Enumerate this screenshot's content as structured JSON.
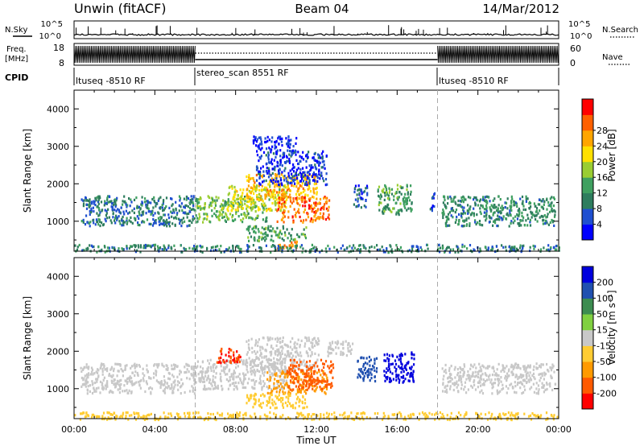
{
  "header": {
    "station": "Unwin (fitACF)",
    "beam": "Beam 04",
    "date": "14/Mar/2012"
  },
  "strips": {
    "nsky_label": "N.Sky",
    "nsearch_label": "N.Search",
    "noise_ticks_left": [
      "10^5",
      "10^0"
    ],
    "noise_ticks_right": [
      "10^5",
      "10^0"
    ],
    "freq_label_1": "Freq.",
    "freq_label_2": "[MHz]",
    "freq_ticks": [
      "18",
      "8"
    ],
    "nave_label": "Nave",
    "nave_ticks": [
      "60",
      "0"
    ],
    "cpid_label": "CPID",
    "cpid_segments": [
      {
        "label": "ltuseq -8510 RF",
        "start_h": 0,
        "end_h": 6
      },
      {
        "label": "stereo_scan 8551 RF",
        "start_h": 6,
        "end_h": 18
      },
      {
        "label": "ltuseq -8510 RF",
        "start_h": 18,
        "end_h": 24
      }
    ]
  },
  "colors": {
    "power_scale": [
      "#0000ff",
      "#1f4fd0",
      "#2e7d5e",
      "#3fa060",
      "#9acd32",
      "#ffe000",
      "#ffa500",
      "#ff6000",
      "#ff0000"
    ],
    "velocity_scale": [
      "#ff0000",
      "#ff5a00",
      "#ff9a00",
      "#ffcc33",
      "#c8c8c8",
      "#80d040",
      "#3c8c50",
      "#2050b0",
      "#0000dd"
    ]
  },
  "chart_data": [
    {
      "type": "heatmap",
      "panel": "power",
      "ylabel": "Slant Range [km]",
      "yticks": [
        "1000",
        "2000",
        "3000",
        "4000"
      ],
      "ylim": [
        200,
        4500
      ],
      "xlim": [
        0,
        24
      ],
      "colorbar_label": "Power [dB]",
      "colorbar_ticks": [
        "4",
        "8",
        "12",
        "16",
        "20",
        "24",
        "28"
      ],
      "colorbar_range": [
        0,
        32
      ],
      "regions": [
        {
          "t0": 0.3,
          "t1": 6.0,
          "r0": 900,
          "r1": 1700,
          "v": 8
        },
        {
          "t0": 6.0,
          "t1": 9.5,
          "r0": 1000,
          "r1": 1700,
          "v": 14
        },
        {
          "t0": 7.5,
          "t1": 10.5,
          "r0": 1300,
          "r1": 2000,
          "v": 18
        },
        {
          "t0": 8.5,
          "t1": 12.0,
          "r0": 1600,
          "r1": 2300,
          "v": 22
        },
        {
          "t0": 10.0,
          "t1": 12.6,
          "r0": 1000,
          "r1": 1700,
          "v": 26
        },
        {
          "t0": 8.5,
          "t1": 11.5,
          "r0": 500,
          "r1": 900,
          "v": 12
        },
        {
          "t0": 10.0,
          "t1": 11.0,
          "r0": 250,
          "r1": 500,
          "v": 24
        },
        {
          "t0": 9.0,
          "t1": 12.5,
          "r0": 2000,
          "r1": 2900,
          "v": 4
        },
        {
          "t0": 8.8,
          "t1": 11.0,
          "r0": 2900,
          "r1": 3300,
          "v": 3
        },
        {
          "t0": 13.8,
          "t1": 14.5,
          "r0": 1400,
          "r1": 2000,
          "v": 6
        },
        {
          "t0": 15.0,
          "t1": 16.7,
          "r0": 1200,
          "r1": 2000,
          "v": 12
        },
        {
          "t0": 17.6,
          "t1": 17.9,
          "r0": 1300,
          "r1": 1800,
          "v": 6
        },
        {
          "t0": 18.2,
          "t1": 23.8,
          "r0": 900,
          "r1": 1700,
          "v": 10
        },
        {
          "t0": 0.0,
          "t1": 24.0,
          "r0": 200,
          "r1": 400,
          "v": 9
        }
      ]
    },
    {
      "type": "heatmap",
      "panel": "velocity",
      "ylabel": "Slant Range [km]",
      "yticks": [
        "1000",
        "2000",
        "3000",
        "4000"
      ],
      "ylim": [
        200,
        4500
      ],
      "xlim": [
        0,
        24
      ],
      "xlabel": "Time UT",
      "xticks": [
        "00:00",
        "04:00",
        "08:00",
        "12:00",
        "16:00",
        "20:00",
        "00:00"
      ],
      "colorbar_label": "Velocity [m s⁻¹]",
      "colorbar_ticks": [
        "200",
        "100",
        "50",
        "15",
        "-15",
        "-50",
        "-100",
        "-200"
      ],
      "colorbar_range": [
        -250,
        250
      ],
      "regions": [
        {
          "t0": 0.3,
          "t1": 6.0,
          "r0": 900,
          "r1": 1700,
          "v": 0
        },
        {
          "t0": 6.0,
          "t1": 10.5,
          "r0": 1000,
          "r1": 1800,
          "v": 0
        },
        {
          "t0": 8.5,
          "t1": 12.2,
          "r0": 1500,
          "r1": 2400,
          "v": 0
        },
        {
          "t0": 9.5,
          "t1": 12.5,
          "r0": 900,
          "r1": 1500,
          "v": -60
        },
        {
          "t0": 10.5,
          "t1": 12.8,
          "r0": 1000,
          "r1": 1800,
          "v": -180
        },
        {
          "t0": 7.0,
          "t1": 8.2,
          "r0": 1700,
          "r1": 2100,
          "v": -200
        },
        {
          "t0": 8.5,
          "t1": 11.5,
          "r0": 500,
          "r1": 900,
          "v": -40
        },
        {
          "t0": 12.5,
          "t1": 13.8,
          "r0": 1900,
          "r1": 2300,
          "v": 0
        },
        {
          "t0": 14.0,
          "t1": 15.0,
          "r0": 1200,
          "r1": 1900,
          "v": 150
        },
        {
          "t0": 15.3,
          "t1": 16.8,
          "r0": 1200,
          "r1": 2000,
          "v": 220
        },
        {
          "t0": 18.2,
          "t1": 23.8,
          "r0": 900,
          "r1": 1700,
          "v": 0
        },
        {
          "t0": 0.0,
          "t1": 24.0,
          "r0": 200,
          "r1": 400,
          "v": -30
        }
      ]
    }
  ]
}
